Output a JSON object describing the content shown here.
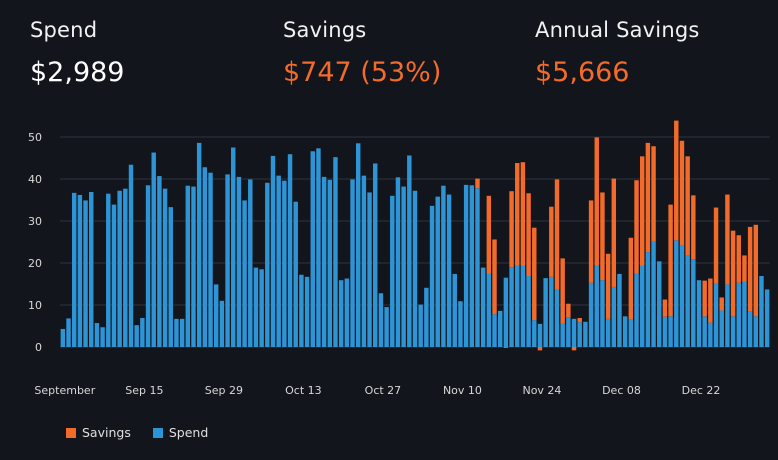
{
  "kpis": {
    "spend": {
      "label": "Spend",
      "value": "$2,989"
    },
    "savings": {
      "label": "Savings",
      "value": "$747 (53%)"
    },
    "annual": {
      "label": "Annual Savings",
      "value": "$5,666"
    }
  },
  "colors": {
    "spend": "#2d95d6",
    "savings": "#f26b2a",
    "grid": "#2e323c"
  },
  "chart_data": {
    "type": "bar",
    "stacked": true,
    "ylim": [
      0,
      55
    ],
    "yticks": [
      "0",
      "10",
      "20",
      "30",
      "40",
      "50"
    ],
    "ytick_values": [
      0,
      10,
      20,
      30,
      40,
      50
    ],
    "xticks": [
      {
        "label": "September",
        "index": 0
      },
      {
        "label": "Sep 15",
        "index": 14
      },
      {
        "label": "Sep 29",
        "index": 28
      },
      {
        "label": "Oct 13",
        "index": 42
      },
      {
        "label": "Oct 27",
        "index": 56
      },
      {
        "label": "Nov 10",
        "index": 70
      },
      {
        "label": "Nov 24",
        "index": 84
      },
      {
        "label": "Dec 08",
        "index": 98
      },
      {
        "label": "Dec 22",
        "index": 112
      }
    ],
    "legend": [
      "Savings",
      "Spend"
    ],
    "series": [
      {
        "name": "Spend",
        "values": [
          4.3,
          6.8,
          36.7,
          36.2,
          34.9,
          36.9,
          5.7,
          4.7,
          36.5,
          33.9,
          37.2,
          37.7,
          43.4,
          5.2,
          6.9,
          38.5,
          46.3,
          40.7,
          37.7,
          33.3,
          6.7,
          6.7,
          38.4,
          38.2,
          48.6,
          42.8,
          41.5,
          14.9,
          11,
          41.1,
          47.5,
          40.5,
          34.9,
          39.9,
          18.9,
          18.5,
          39.1,
          45.5,
          40.8,
          39.6,
          45.9,
          34.6,
          17.2,
          16.7,
          46.6,
          47.3,
          40.5,
          39.8,
          45.2,
          15.9,
          16.3,
          39.9,
          48.5,
          40.8,
          36.8,
          43.7,
          12.8,
          9.5,
          36,
          40.4,
          38.2,
          45.6,
          37.2,
          10.1,
          14.1,
          33.6,
          35.8,
          38.4,
          36.3,
          17.4,
          10.9,
          38.6,
          38.5,
          37.8,
          18.9,
          17.4,
          7.8,
          8.6,
          16.5,
          19,
          19.4,
          19.3,
          16.9,
          6.4,
          5.5,
          16.4,
          16.7,
          13.7,
          5.5,
          7.1,
          6.7,
          5.9,
          6,
          15.3,
          19.4,
          15.9,
          6.7,
          14.3,
          17.4,
          7.3,
          6.5,
          17.4,
          19.3,
          22.6,
          25.1,
          20.4,
          7.2,
          7.3,
          25.4,
          24.1,
          21.9,
          20.9,
          15.9,
          7.3,
          5.8,
          15.1,
          8.7,
          14.9,
          7.3,
          15.3,
          15.6,
          8.4,
          7.3,
          16.9,
          13.7
        ]
      },
      {
        "name": "Savings",
        "values": [
          0,
          0,
          0,
          0,
          0,
          0,
          0,
          0,
          0,
          0,
          0,
          0,
          0,
          0,
          0,
          0,
          0,
          0,
          0,
          0,
          0,
          0,
          0,
          0,
          0,
          0,
          0,
          0,
          0,
          0,
          0,
          0,
          0,
          0,
          0,
          0,
          0,
          0,
          0,
          0,
          0,
          0,
          0,
          0,
          0,
          0,
          0,
          0,
          0,
          0,
          0,
          0,
          0,
          0,
          0,
          0,
          0,
          0,
          0,
          0,
          0,
          0,
          0,
          0,
          0,
          0,
          0,
          0,
          0,
          0,
          0,
          0,
          0,
          2.3,
          0,
          18.6,
          17.8,
          0,
          -0.2,
          18.1,
          24.4,
          24.7,
          19.7,
          22,
          -0.8,
          0,
          16.7,
          26.2,
          15.6,
          3.2,
          -0.8,
          1,
          0,
          19.6,
          30.5,
          20.9,
          15.5,
          25.8,
          0,
          0,
          19.5,
          22.3,
          26.1,
          26,
          22.7,
          0,
          4.1,
          26.6,
          28.5,
          25,
          23.5,
          15.2,
          0,
          8.5,
          10.5,
          18.1,
          3.1,
          21.4,
          20.4,
          11.3,
          6.2,
          20.2,
          21.8
        ]
      }
    ]
  }
}
